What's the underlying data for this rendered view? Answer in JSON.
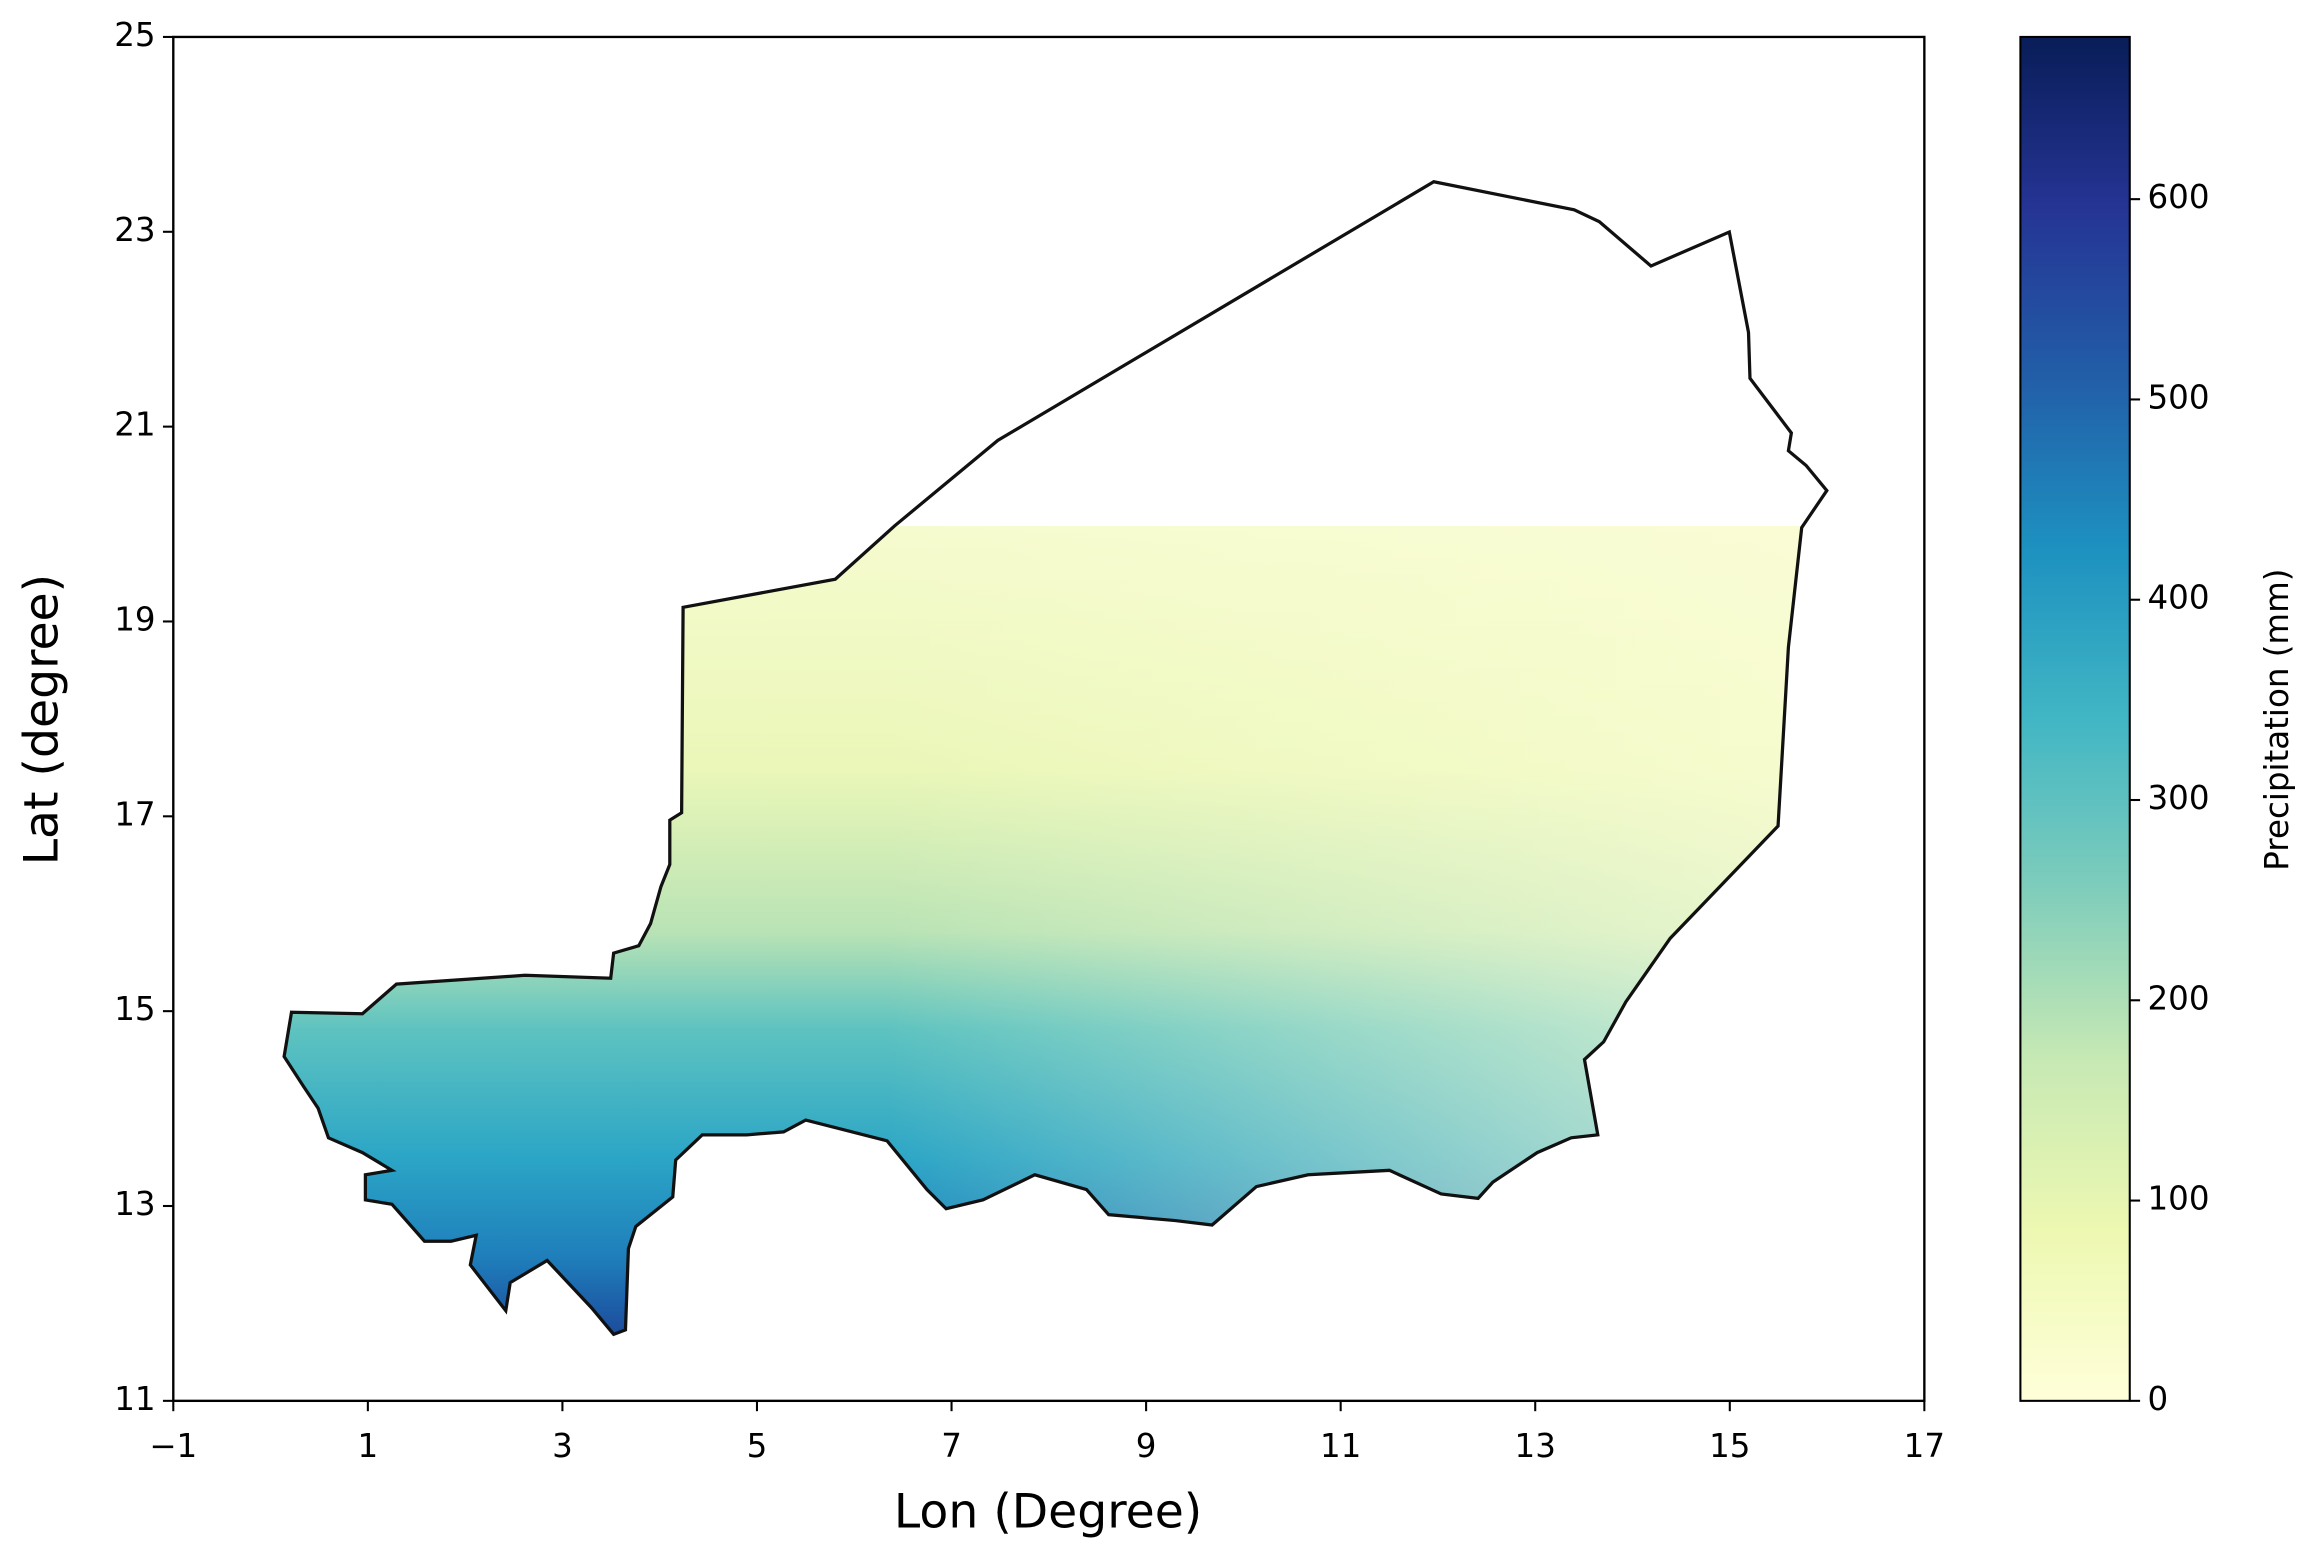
{
  "chart_data": {
    "type": "map",
    "xlabel": "Lon (Degree)",
    "ylabel": "Lat (degree)",
    "xlim": [
      -1,
      17
    ],
    "ylim": [
      11,
      25
    ],
    "xticks": [
      {
        "value": -1,
        "label": "−1"
      },
      1,
      3,
      5,
      7,
      9,
      11,
      13,
      15,
      17
    ],
    "yticks": [
      11,
      13,
      15,
      17,
      19,
      21,
      23,
      25
    ],
    "colorbar": {
      "label": "Precipitation (mm)",
      "lim": [
        0,
        681
      ],
      "ticks": [
        0,
        100,
        200,
        300,
        400,
        500,
        600
      ],
      "colors": [
        "#ffffd9",
        "#edf8b1",
        "#c7e9b4",
        "#7fcdbb",
        "#41b6c4",
        "#1d91c0",
        "#225ea8",
        "#253494",
        "#081d58"
      ]
    }
  }
}
